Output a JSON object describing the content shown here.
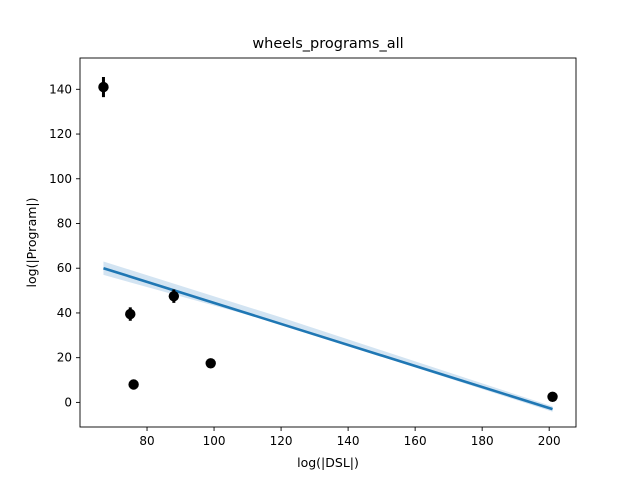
{
  "chart_data": {
    "type": "scatter",
    "title": "wheels_programs_all",
    "xlabel": "log(|DSL|)",
    "ylabel": "log(|Program|)",
    "xlim": [
      60,
      208
    ],
    "ylim": [
      -11,
      154
    ],
    "xticks": [
      80,
      100,
      120,
      140,
      160,
      180,
      200
    ],
    "yticks": [
      0,
      20,
      40,
      60,
      80,
      100,
      120,
      140
    ],
    "grid": false,
    "points": [
      {
        "x": 67,
        "y": 141,
        "err": 4.5
      },
      {
        "x": 75,
        "y": 39.5,
        "err": 3
      },
      {
        "x": 76,
        "y": 8,
        "err": 0
      },
      {
        "x": 88,
        "y": 47.5,
        "err": 3
      },
      {
        "x": 99,
        "y": 17.5,
        "err": 0
      },
      {
        "x": 201,
        "y": 2.5,
        "err": 0
      }
    ],
    "regression": {
      "x": [
        67,
        201
      ],
      "y": [
        60,
        -3
      ],
      "ci_lower": [
        57,
        -4.2
      ],
      "ci_upper": [
        63,
        -1.8
      ],
      "ci_mid_x": 120,
      "ci_mid_lower": 35,
      "ci_mid_upper": 38
    },
    "colors": {
      "points": "#000000",
      "line": "#1f77b4",
      "band": "#aecde8"
    }
  }
}
